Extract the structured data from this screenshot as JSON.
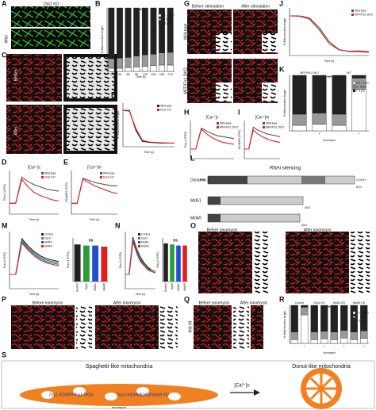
{
  "letters": [
    "A",
    "B",
    "C",
    "D",
    "E",
    "F",
    "G",
    "H",
    "I",
    "J",
    "K",
    "L",
    "M",
    "N",
    "O",
    "P",
    "Q",
    "R",
    "S"
  ],
  "texts": {
    "A_title": "Drp1 KO",
    "A_before": "Before",
    "A_after": "After",
    "C_before": "Before",
    "C_after": "After",
    "G_before": "Before stimulation",
    "G_after": "After stimulation",
    "G_wt": "Wild-type",
    "G_dko": "MFF/Fis1 DKO",
    "L_title": "RNAi silencing",
    "L_dyn": "Dynamin 2",
    "L_mid51": "Mid51",
    "L_mid49": "Mid49",
    "L_nh": "NH₂",
    "L_cooh": "COOH",
    "L_870": "870",
    "L_463": "463",
    "L_454": "454",
    "O_before": "Before ionomycin",
    "O_after": "After ionomycin",
    "O_side": "Dyn2",
    "P_before": "Before ionomycin",
    "P_after": "After ionomycin",
    "P_side": "Mid 51",
    "Q_before": "Before ionomycin",
    "Q_after": "After ionomycin",
    "Q_side": "Mid 49",
    "S_left": "Spaghetti-like mitochondria",
    "S_right": "Donut-like mitochondria",
    "S_ko": "Drp1 KO/MFF/Fis1 DKO/",
    "S_kd": "Dyn2 KD/Mid51KD/Mid49 KD",
    "S_ca": "[Ca²⁺]c",
    "S_iono": "Ionomycin"
  },
  "charts": {
    "B": {
      "type": "stacked",
      "ylabel": "% Mitochondria length",
      "xlabel": "Time (s)",
      "ylim": [
        0,
        100
      ],
      "categories": [
        "0",
        "30",
        "60",
        "90",
        "120",
        "150",
        "180",
        "210"
      ],
      "annotation": "***",
      "series": [
        {
          "name": "0.2 - 2 μm",
          "color": "#ffffff",
          "values": [
            5,
            5,
            6,
            7,
            8,
            9,
            10,
            10
          ]
        },
        {
          "name": "2 - 5 μm",
          "color": "#999999",
          "values": [
            15,
            16,
            16,
            17,
            18,
            18,
            19,
            20
          ]
        },
        {
          "name": "> 5 μm",
          "color": "#222222",
          "values": [
            80,
            79,
            78,
            76,
            74,
            73,
            71,
            70
          ]
        }
      ]
    },
    "D": {
      "type": "line",
      "title": "[Ca²⁺]c",
      "ylabel": "Fluo-4 (F/F0)",
      "xlabel": "Time (s)",
      "ylim": [
        0,
        4
      ],
      "xlim": [
        0,
        400
      ],
      "x": [
        0,
        50,
        100,
        150,
        200,
        250,
        300,
        350,
        400
      ],
      "series": [
        {
          "name": "Wild-type",
          "color": "#555555",
          "values": [
            1,
            1,
            3.4,
            3.0,
            2.7,
            2.5,
            2.3,
            2.2,
            2.1
          ]
        },
        {
          "name": "Drp1 KO",
          "color": "#e02020",
          "values": [
            1,
            1,
            3.2,
            2.5,
            2.0,
            1.7,
            1.5,
            1.3,
            1.2
          ]
        }
      ]
    },
    "E": {
      "type": "line",
      "title": "[Ca²⁺]m",
      "ylabel": "GCaMP6 (F/F0)",
      "xlabel": "Time (s)",
      "ylim": [
        0,
        4
      ],
      "xlim": [
        0,
        400
      ],
      "x": [
        0,
        50,
        100,
        150,
        200,
        250,
        300,
        350,
        400
      ],
      "series": [
        {
          "name": "Wild-type",
          "color": "#555555",
          "values": [
            1,
            1,
            3.3,
            3.1,
            2.9,
            2.8,
            2.7,
            2.6,
            2.6
          ]
        },
        {
          "name": "Drp1 KO",
          "color": "#e02020",
          "values": [
            1,
            1,
            3.2,
            2.9,
            2.6,
            2.4,
            2.2,
            2.0,
            1.9
          ]
        }
      ]
    },
    "F": {
      "type": "line",
      "ylabel": "% mitochondrial length",
      "xlabel": "Time (s)",
      "ylim": [
        0,
        120
      ],
      "xlim": [
        0,
        240
      ],
      "x": [
        0,
        30,
        60,
        90,
        120,
        150,
        180,
        210,
        240
      ],
      "series": [
        {
          "name": "Wild-type",
          "color": "#222222",
          "values": [
            100,
            100,
            45,
            15,
            12,
            11,
            10,
            10,
            10
          ]
        },
        {
          "name": "Drp1 KO",
          "color": "#e02020",
          "values": [
            100,
            98,
            50,
            18,
            13,
            12,
            11,
            10,
            10
          ]
        }
      ]
    },
    "H": {
      "type": "line",
      "title": "[Ca²⁺]c",
      "ylabel": "Fluo-4 (F/F0)",
      "ylim": [
        0,
        4
      ],
      "xlim": [
        0,
        400
      ],
      "x": [
        0,
        50,
        100,
        150,
        200,
        250,
        300,
        350,
        400
      ],
      "series": [
        {
          "name": "Wild-type",
          "color": "#555555",
          "values": [
            1,
            1,
            3.2,
            2.9,
            2.6,
            2.4,
            2.3,
            2.2,
            2.1
          ]
        },
        {
          "name": "MFF/Fis1 DKO",
          "color": "#e02020",
          "values": [
            1,
            1,
            3.1,
            2.6,
            2.2,
            1.9,
            1.7,
            1.6,
            1.5
          ]
        }
      ]
    },
    "I": {
      "type": "line",
      "title": "[Ca²⁺]m",
      "ylabel": "GCaMP6 (F/F0)",
      "ylim": [
        0,
        4
      ],
      "xlim": [
        0,
        400
      ],
      "x": [
        0,
        50,
        100,
        150,
        200,
        250,
        300,
        350,
        400
      ],
      "series": [
        {
          "name": "Wild-type",
          "color": "#555555",
          "values": [
            1,
            1,
            3.3,
            3.0,
            2.8,
            2.6,
            2.5,
            2.4,
            2.3
          ]
        },
        {
          "name": "MFF/Fis1 DKO",
          "color": "#e02020",
          "values": [
            1,
            1,
            3.0,
            2.6,
            2.3,
            2.1,
            1.9,
            1.8,
            1.7
          ]
        }
      ]
    },
    "J": {
      "type": "line",
      "ylabel": "% Mitochondria length",
      "xlabel": "Time (s)",
      "ylim": [
        0,
        120
      ],
      "xlim": [
        0,
        240
      ],
      "x": [
        0,
        30,
        60,
        90,
        120,
        150,
        180,
        210,
        240
      ],
      "series": [
        {
          "name": "Wild-type",
          "color": "#555555",
          "values": [
            100,
            100,
            95,
            70,
            35,
            15,
            10,
            9,
            8
          ]
        },
        {
          "name": "MFF/Fis1 DKO",
          "color": "#e02020",
          "values": [
            100,
            99,
            92,
            65,
            30,
            14,
            11,
            12,
            10
          ]
        }
      ]
    },
    "K": {
      "type": "stacked",
      "ylabel": "% Mitochondria length",
      "xlabel": "Ionomycin",
      "ylim": [
        0,
        100
      ],
      "categories": [
        "-",
        "+",
        "-",
        "+"
      ],
      "groups": [
        "MFF/Fis1 DKO",
        "WT"
      ],
      "annotation": "***",
      "series": [
        {
          "name": "0.2 - 2 μm",
          "color": "#ffffff",
          "values": [
            10,
            12,
            10,
            75
          ]
        },
        {
          "name": "2 - 5 μm",
          "color": "#999999",
          "values": [
            20,
            20,
            20,
            20
          ]
        },
        {
          "name": "> 5 μm",
          "color": "#222222",
          "values": [
            70,
            68,
            70,
            5
          ]
        }
      ]
    },
    "M": {
      "type": "line",
      "ylabel": "Fluo-4 (F/F0)",
      "xlabel": "Time (s)",
      "ylim": [
        0,
        4
      ],
      "xlim": [
        0,
        400
      ],
      "x": [
        0,
        50,
        100,
        150,
        200,
        250,
        300,
        350,
        400
      ],
      "series": [
        {
          "name": "Control",
          "color": "#222222",
          "values": [
            1,
            1,
            3.5,
            3.0,
            2.6,
            2.3,
            2.1,
            2.0,
            1.9
          ]
        },
        {
          "name": "Dyn2",
          "color": "#2a9d3a",
          "values": [
            1,
            1,
            3.4,
            2.9,
            2.5,
            2.2,
            2.0,
            1.9,
            1.8
          ]
        },
        {
          "name": "Mid51",
          "color": "#2050d0",
          "values": [
            1,
            1,
            3.3,
            2.8,
            2.4,
            2.1,
            1.9,
            1.8,
            1.7
          ]
        },
        {
          "name": "Mid49",
          "color": "#e02020",
          "values": [
            1,
            1,
            3.2,
            2.7,
            2.3,
            2.0,
            1.8,
            1.7,
            1.6
          ]
        }
      ]
    },
    "Mb": {
      "type": "bar",
      "ylabel": "Fluo-4 (F/F0)",
      "ylim": [
        0,
        4
      ],
      "categories": [
        "Control",
        "Dyn2",
        "Mid51",
        "Mid49"
      ],
      "colors": [
        "#222222",
        "#2a9d3a",
        "#2050d0",
        "#e02020"
      ],
      "values": [
        3.4,
        3.3,
        3.3,
        3.2
      ],
      "annotation": "ns"
    },
    "N": {
      "type": "line",
      "ylabel": "Rho-2 (F/F0)",
      "xlabel": "Time (s)",
      "ylim": [
        0,
        4
      ],
      "xlim": [
        0,
        400
      ],
      "x": [
        0,
        50,
        100,
        150,
        200,
        250,
        300,
        350,
        400
      ],
      "series": [
        {
          "name": "Control",
          "color": "#222222",
          "values": [
            1,
            1,
            3.6,
            2.8,
            2.2,
            1.8,
            1.5,
            1.3,
            1.2
          ]
        },
        {
          "name": "Dyn2",
          "color": "#2a9d3a",
          "values": [
            1,
            1,
            3.5,
            2.7,
            2.1,
            1.7,
            1.4,
            1.3,
            1.2
          ]
        },
        {
          "name": "Mid51",
          "color": "#2050d0",
          "values": [
            1,
            1,
            3.4,
            2.6,
            2.0,
            1.6,
            1.4,
            1.2,
            1.1
          ]
        },
        {
          "name": "Mid49",
          "color": "#e02020",
          "values": [
            1,
            1,
            3.3,
            2.5,
            1.9,
            1.6,
            1.3,
            1.2,
            1.1
          ]
        }
      ]
    },
    "Nb": {
      "type": "bar",
      "ylabel": "Rho-2 (F/F0)",
      "ylim": [
        0,
        4
      ],
      "categories": [
        "Control",
        "Dyn2",
        "Mid51",
        "Mid49"
      ],
      "colors": [
        "#222222",
        "#2a9d3a",
        "#2050d0",
        "#e02020"
      ],
      "values": [
        3.5,
        3.4,
        3.3,
        3.3
      ],
      "annotation": "ns"
    },
    "R": {
      "type": "stacked",
      "ylabel": "% Mitochondria length",
      "xlabel": "Ionomycin",
      "ylim": [
        0,
        100
      ],
      "categories": [
        "-",
        "+",
        "-",
        "+",
        "-",
        "+",
        "-",
        "+"
      ],
      "groups": [
        "Control",
        "Dyn2 KD",
        "Mid51 KD",
        "Mid49 KD"
      ],
      "annotation": "***",
      "series": [
        {
          "name": "0.2 - 2 μm",
          "color": "#ffffff",
          "values": [
            10,
            75,
            10,
            12,
            10,
            14,
            10,
            13
          ]
        },
        {
          "name": "2 - 5 μm",
          "color": "#999999",
          "values": [
            20,
            20,
            20,
            20,
            20,
            20,
            20,
            20
          ]
        },
        {
          "name": "> 5 μm",
          "color": "#222222",
          "values": [
            70,
            5,
            70,
            68,
            70,
            66,
            70,
            67
          ]
        }
      ]
    }
  }
}
